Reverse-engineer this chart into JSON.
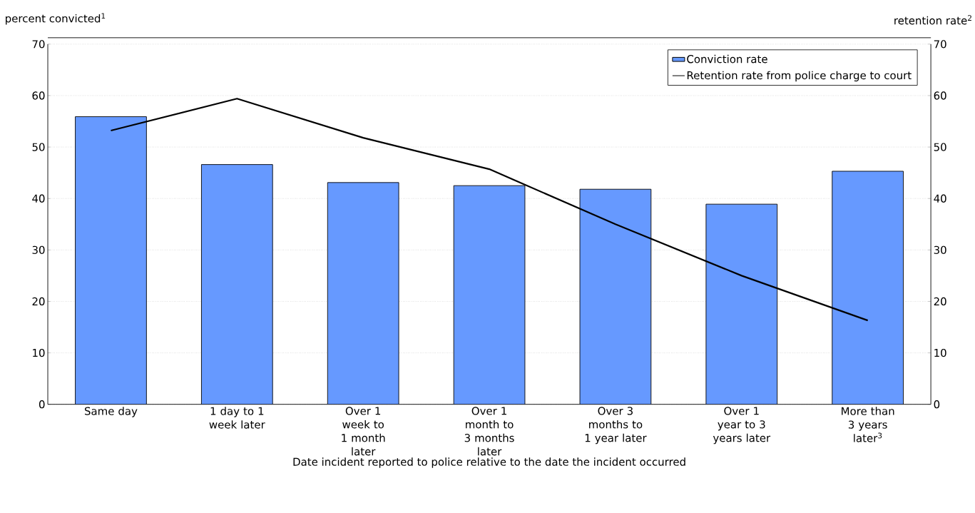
{
  "chart_data": {
    "type": "bar",
    "categories": [
      "Same day",
      "1 day to 1 week later",
      "Over 1 week to 1 month later",
      "Over 1 month to 3 months later",
      "Over 3 months to 1 year later",
      "Over 1 year to 3 years later",
      "More than 3 years later$^{3}$"
    ],
    "series": [
      {
        "name": "Conviction rate",
        "color": "#6699ff",
        "values": [
          55.9,
          46.6,
          43.1,
          42.5,
          41.8,
          38.9,
          45.3
        ]
      },
      {
        "name": "Retention rate from police charge to court",
        "type": "line",
        "axis": "y2",
        "color": "#000000",
        "values": [
          53.2,
          59.4,
          51.8,
          45.7,
          35.0,
          25.0,
          16.3
        ]
      }
    ],
    "xlabel": "Date incident reported to police relative to the date the incident occurred",
    "ylabel": "percent convicted$^{1}$",
    "y2label": "retention rate$^{2}$",
    "ylim": [
      0,
      70
    ],
    "yticks": [
      0,
      10,
      20,
      30,
      40,
      50,
      60,
      70
    ],
    "y2lim": [
      0,
      70
    ],
    "y2ticks": [
      0,
      10,
      20,
      30,
      40,
      50,
      60,
      70
    ],
    "grid": "y",
    "legend": "top right"
  }
}
